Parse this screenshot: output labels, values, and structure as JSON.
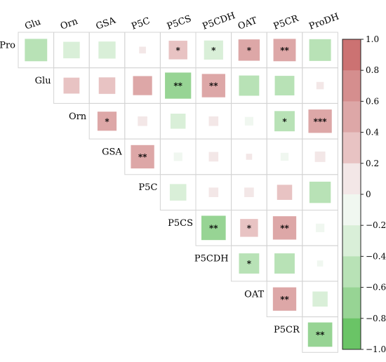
{
  "chart_data": {
    "type": "heatmap",
    "variables": [
      "Pro",
      "Glu",
      "Orn",
      "GSA",
      "P5C",
      "P5CS",
      "P5CDH",
      "OAT",
      "P5CR",
      "ProDH"
    ],
    "column_labels": [
      "Glu",
      "Orn",
      "GSA",
      "P5C",
      "P5CS",
      "P5CDH",
      "OAT",
      "P5CR",
      "ProDH"
    ],
    "row_labels": [
      "Pro",
      "Glu",
      "Orn",
      "GSA",
      "P5C",
      "P5CS",
      "P5CDH",
      "OAT",
      "P5CR"
    ],
    "matrix_shape": "upper-triangular",
    "cells": [
      {
        "row": "Pro",
        "col": "Glu",
        "r": -0.55,
        "sig": ""
      },
      {
        "row": "Pro",
        "col": "Orn",
        "r": -0.3,
        "sig": ""
      },
      {
        "row": "Pro",
        "col": "GSA",
        "r": -0.32,
        "sig": ""
      },
      {
        "row": "Pro",
        "col": "P5C",
        "r": 0.05,
        "sig": ""
      },
      {
        "row": "Pro",
        "col": "P5CS",
        "r": 0.38,
        "sig": "*"
      },
      {
        "row": "Pro",
        "col": "P5CDH",
        "r": -0.4,
        "sig": "*"
      },
      {
        "row": "Pro",
        "col": "OAT",
        "r": 0.5,
        "sig": "*"
      },
      {
        "row": "Pro",
        "col": "P5CR",
        "r": 0.55,
        "sig": "**"
      },
      {
        "row": "Pro",
        "col": "ProDH",
        "r": -0.52,
        "sig": ""
      },
      {
        "row": "Glu",
        "col": "Orn",
        "r": 0.28,
        "sig": ""
      },
      {
        "row": "Glu",
        "col": "GSA",
        "r": 0.3,
        "sig": ""
      },
      {
        "row": "Glu",
        "col": "P5C",
        "r": 0.4,
        "sig": ""
      },
      {
        "row": "Glu",
        "col": "P5CS",
        "r": -0.75,
        "sig": "**"
      },
      {
        "row": "Glu",
        "col": "P5CDH",
        "r": 0.6,
        "sig": "**"
      },
      {
        "row": "Glu",
        "col": "OAT",
        "r": -0.45,
        "sig": ""
      },
      {
        "row": "Glu",
        "col": "P5CR",
        "r": -0.42,
        "sig": ""
      },
      {
        "row": "Glu",
        "col": "ProDH",
        "r": 0.06,
        "sig": ""
      },
      {
        "row": "Orn",
        "col": "GSA",
        "r": 0.4,
        "sig": "*"
      },
      {
        "row": "Orn",
        "col": "P5C",
        "r": 0.1,
        "sig": ""
      },
      {
        "row": "Orn",
        "col": "P5CS",
        "r": -0.25,
        "sig": ""
      },
      {
        "row": "Orn",
        "col": "P5CDH",
        "r": 0.1,
        "sig": ""
      },
      {
        "row": "Orn",
        "col": "OAT",
        "r": -0.08,
        "sig": ""
      },
      {
        "row": "Orn",
        "col": "P5CR",
        "r": -0.45,
        "sig": "*"
      },
      {
        "row": "Orn",
        "col": "ProDH",
        "r": 0.6,
        "sig": "***"
      },
      {
        "row": "GSA",
        "col": "P5C",
        "r": 0.6,
        "sig": "**"
      },
      {
        "row": "GSA",
        "col": "P5CS",
        "r": -0.08,
        "sig": ""
      },
      {
        "row": "GSA",
        "col": "P5CDH",
        "r": 0.1,
        "sig": ""
      },
      {
        "row": "GSA",
        "col": "OAT",
        "r": 0.04,
        "sig": ""
      },
      {
        "row": "GSA",
        "col": "P5CR",
        "r": -0.07,
        "sig": ""
      },
      {
        "row": "GSA",
        "col": "ProDH",
        "r": 0.12,
        "sig": ""
      },
      {
        "row": "P5C",
        "col": "P5CS",
        "r": -0.3,
        "sig": ""
      },
      {
        "row": "P5C",
        "col": "P5CDH",
        "r": 0.1,
        "sig": ""
      },
      {
        "row": "P5C",
        "col": "OAT",
        "r": 0.1,
        "sig": ""
      },
      {
        "row": "P5C",
        "col": "P5CR",
        "r": 0.25,
        "sig": ""
      },
      {
        "row": "P5C",
        "col": "ProDH",
        "r": -0.5,
        "sig": ""
      },
      {
        "row": "P5CS",
        "col": "P5CDH",
        "r": -0.65,
        "sig": "**"
      },
      {
        "row": "P5CS",
        "col": "OAT",
        "r": 0.35,
        "sig": "*"
      },
      {
        "row": "P5CS",
        "col": "P5CR",
        "r": 0.6,
        "sig": "**"
      },
      {
        "row": "P5CS",
        "col": "ProDH",
        "r": -0.08,
        "sig": ""
      },
      {
        "row": "P5CDH",
        "col": "OAT",
        "r": -0.45,
        "sig": "*"
      },
      {
        "row": "P5CDH",
        "col": "P5CR",
        "r": -0.45,
        "sig": ""
      },
      {
        "row": "P5CDH",
        "col": "ProDH",
        "r": -0.04,
        "sig": ""
      },
      {
        "row": "OAT",
        "col": "P5CR",
        "r": 0.6,
        "sig": "**"
      },
      {
        "row": "OAT",
        "col": "ProDH",
        "r": -0.25,
        "sig": ""
      },
      {
        "row": "P5CR",
        "col": "ProDH",
        "r": -0.65,
        "sig": "**"
      }
    ],
    "colorbar": {
      "min": -1.0,
      "max": 1.0,
      "ticks": [
        "1.0",
        "0.8",
        "0.6",
        "0.4",
        "0.2",
        "0",
        "−0.2",
        "−0.4",
        "−0.6",
        "−0.8",
        "−1.0"
      ],
      "colors_top_to_bottom": [
        "#cc7272",
        "#d58e8e",
        "#dda7a7",
        "#e8c3c3",
        "#f3e7e7",
        "#f0f7f0",
        "#d9efd8",
        "#b8e2b6",
        "#97d494",
        "#6ac466"
      ]
    },
    "title": "",
    "xlabel": "",
    "ylabel": "",
    "grid": true,
    "legend": "colorbar-right"
  }
}
